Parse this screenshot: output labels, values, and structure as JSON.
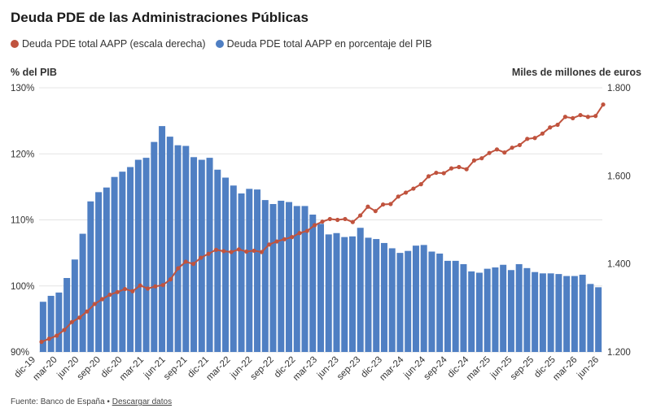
{
  "title": "Deuda PDE de las Administraciones Públicas",
  "legend": [
    {
      "label": "Deuda PDE total AAPP (escala derecha)",
      "color": "#c0533e"
    },
    {
      "label": "Deuda PDE total AAPP en porcentaje del PIB",
      "color": "#4f7fc3"
    }
  ],
  "left_axis_title": "% del PIB",
  "right_axis_title": "Miles de millones de euros",
  "footer": {
    "source": "Fuente: Banco de España",
    "separator": "•",
    "link": "Descargar datos"
  },
  "chart_data": {
    "type": "bar+line",
    "x_tick_labels": [
      "dic-19",
      "mar-20",
      "jun-20",
      "sep-20",
      "dic-20",
      "mar-21",
      "jun-21",
      "sep-21",
      "dic-21",
      "mar-22",
      "jun-22",
      "sep-22",
      "dic-22",
      "mar-23",
      "jun-23",
      "sep-23",
      "dic-23",
      "mar-24",
      "jun-24",
      "sep-24",
      "dic-24",
      "mar-25",
      "jun-25",
      "sep-25",
      "dic-25",
      "mar-26",
      "jun-26"
    ],
    "left_axis": {
      "ylim": [
        90,
        130
      ],
      "ticks": [
        "90%",
        "100%",
        "110%",
        "120%",
        "130%"
      ],
      "tick_values": [
        90,
        100,
        110,
        120,
        130
      ]
    },
    "right_axis": {
      "ylim": [
        1200,
        1800
      ],
      "ticks": [
        "1.200",
        "1.400",
        "1.600",
        "1.800"
      ],
      "tick_values": [
        1200,
        1400,
        1600,
        1800
      ]
    },
    "series": [
      {
        "name": "Deuda PDE total AAPP en porcentaje del PIB",
        "type": "bar",
        "axis": "left",
        "color": "#4f7fc3",
        "values": [
          97.6,
          98.5,
          99,
          101.2,
          104,
          107.9,
          112.8,
          114.2,
          114.9,
          116.5,
          117.3,
          118,
          119.1,
          119.4,
          121.8,
          124.2,
          122.6,
          121.3,
          121.2,
          119.5,
          119.1,
          119.4,
          117.6,
          116.4,
          115.2,
          114,
          114.7,
          114.6,
          113,
          112.4,
          112.9,
          112.7,
          112.1,
          112.1,
          110.8,
          109.4,
          107.8,
          108,
          107.4,
          107.5,
          108.8,
          107.3,
          107.1,
          106.5,
          105.7,
          105,
          105.3,
          106.1,
          106.2,
          105.2,
          104.9,
          103.8,
          103.8,
          103.3,
          102.2,
          102,
          102.6,
          102.8,
          103.2,
          102.4,
          103.3,
          102.7,
          102.1,
          101.9,
          101.9,
          101.8,
          101.5,
          101.5,
          101.7,
          100.3,
          99.8
        ]
      },
      {
        "name": "Deuda PDE total AAPP (escala derecha)",
        "type": "line",
        "axis": "right",
        "color": "#c0533e",
        "values": [
          1223,
          1230,
          1237,
          1250,
          1268,
          1278,
          1292,
          1309,
          1320,
          1330,
          1336,
          1343,
          1338,
          1351,
          1344,
          1349,
          1352,
          1365,
          1390,
          1405,
          1400,
          1414,
          1423,
          1432,
          1429,
          1427,
          1433,
          1428,
          1430,
          1427,
          1444,
          1451,
          1456,
          1461,
          1470,
          1475,
          1488,
          1496,
          1502,
          1500,
          1502,
          1495,
          1510,
          1530,
          1520,
          1535,
          1536,
          1553,
          1562,
          1571,
          1581,
          1599,
          1607,
          1606,
          1617,
          1620,
          1615,
          1635,
          1640,
          1652,
          1660,
          1653,
          1664,
          1670,
          1684,
          1686,
          1696,
          1710,
          1716,
          1734,
          1731,
          1738,
          1734,
          1736,
          1762
        ]
      }
    ]
  }
}
